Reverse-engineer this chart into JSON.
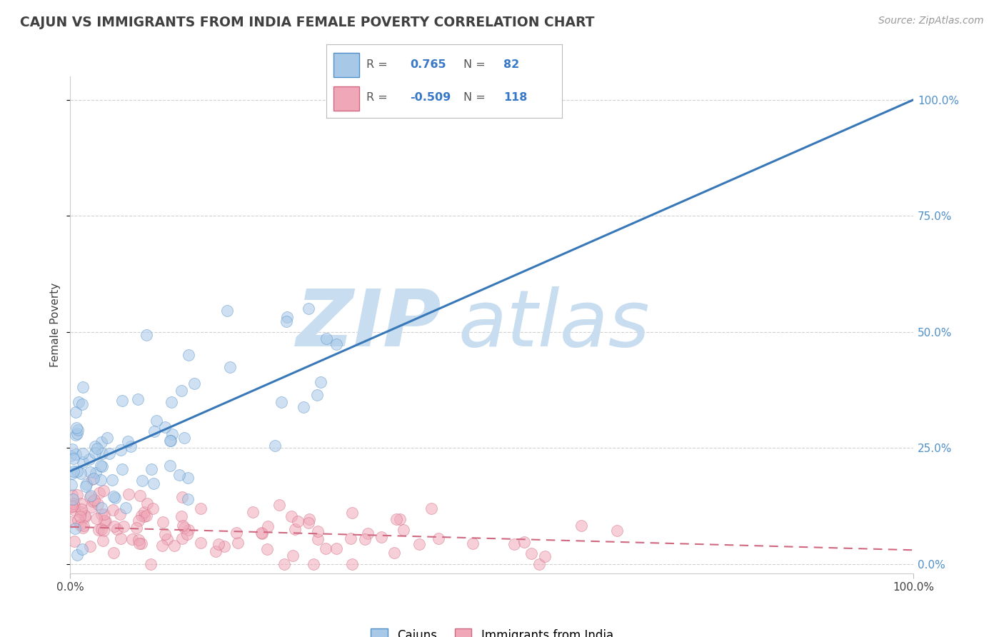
{
  "title": "CAJUN VS IMMIGRANTS FROM INDIA FEMALE POVERTY CORRELATION CHART",
  "source": "Source: ZipAtlas.com",
  "ylabel": "Female Poverty",
  "xlim": [
    0,
    100
  ],
  "ylim": [
    -2,
    105
  ],
  "cajun_r": 0.765,
  "cajun_n": 82,
  "india_r": -0.509,
  "india_n": 118,
  "cajun_color": "#a8c8e8",
  "cajun_edge_color": "#5090c8",
  "cajun_line_color": "#3878b8",
  "india_color": "#f0a8b8",
  "india_edge_color": "#d06880",
  "india_line_color": "#d06880",
  "watermark_zip": "ZIP",
  "watermark_atlas": "atlas",
  "watermark_color": "#c8ddf0",
  "background_color": "#ffffff",
  "grid_color": "#cccccc",
  "title_color": "#404040",
  "axis_label_color": "#404040",
  "tick_color": "#5090c8",
  "ytick_labels": [
    "0.0%",
    "25.0%",
    "50.0%",
    "75.0%",
    "100.0%"
  ],
  "ytick_values": [
    0,
    25,
    50,
    75,
    100
  ],
  "xtick_labels": [
    "0.0%",
    "100.0%"
  ],
  "xtick_values": [
    0,
    100
  ],
  "cajun_line_x0": 0,
  "cajun_line_y0": 20,
  "cajun_line_x1": 100,
  "cajun_line_y1": 100,
  "india_line_x0": 0,
  "india_line_y0": 8,
  "india_line_x1": 100,
  "india_line_y1": 3,
  "legend_r1": "R =  0.765",
  "legend_n1": "N =  82",
  "legend_r2": "R = -0.509",
  "legend_n2": "N = 118",
  "bottom_legend_labels": [
    "Cajuns",
    "Immigrants from India"
  ],
  "cajun_seed": 42,
  "india_seed": 99
}
